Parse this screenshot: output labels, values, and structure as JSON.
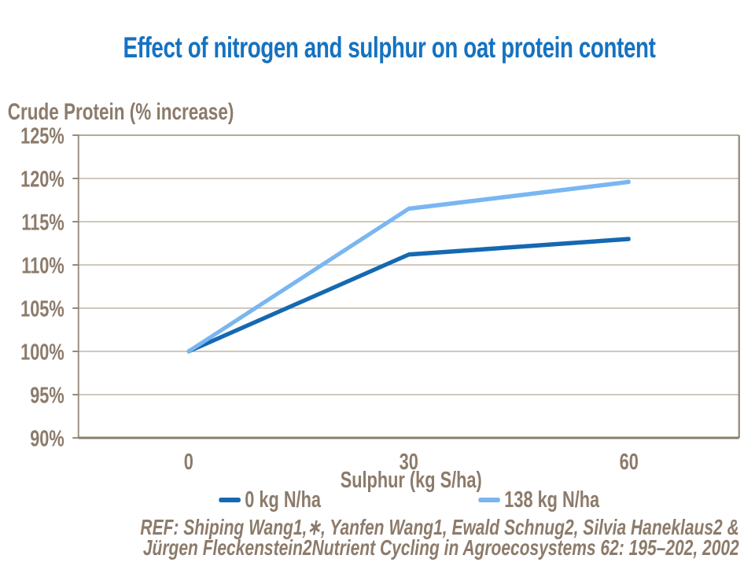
{
  "slide": {
    "title": "Effect of nitrogen and sulphur on oat protein content",
    "reference": {
      "line1": "REF: Shiping Wang1,∗, Yanfen Wang1, Ewald Schnug2, Silvia Haneklaus2 &",
      "line2": "Jürgen Fleckenstein2Nutrient Cycling in Agroecosystems 62: 195–202, 2002"
    }
  },
  "colors": {
    "title_text": "#1572C0",
    "axis_text": "#8C7B6B",
    "gridline": "#C0B7AA",
    "top_gridline": "#B3A99B",
    "axis_line": "#95897A",
    "bottom_axis_line": "#8A7E6D",
    "series_dark_blue": "#1568B2",
    "series_light_blue": "#79B6F2",
    "background": "#FFFFFF"
  },
  "chart_data": {
    "type": "line",
    "title": "Effect of nitrogen and sulphur on oat protein content",
    "ylabel": "Crude Protein (% increase)",
    "xlabel": "Sulphur (kg S/ha)",
    "categories": [
      "0",
      "30",
      "60"
    ],
    "series": [
      {
        "name": "0 kg N/ha",
        "color": "#1568B2",
        "values": [
          100,
          111.2,
          113.0
        ]
      },
      {
        "name": "138 kg N/ha",
        "color": "#79B6F2",
        "values": [
          100,
          116.5,
          119.6
        ]
      }
    ],
    "ylim": [
      90,
      125
    ],
    "ytick_step": 5,
    "ytick_labels": [
      "90%",
      "95%",
      "100%",
      "105%",
      "110%",
      "115%",
      "120%",
      "125%"
    ],
    "ytick_suffix": "%",
    "grid": "horizontal",
    "legend_position": "bottom"
  }
}
